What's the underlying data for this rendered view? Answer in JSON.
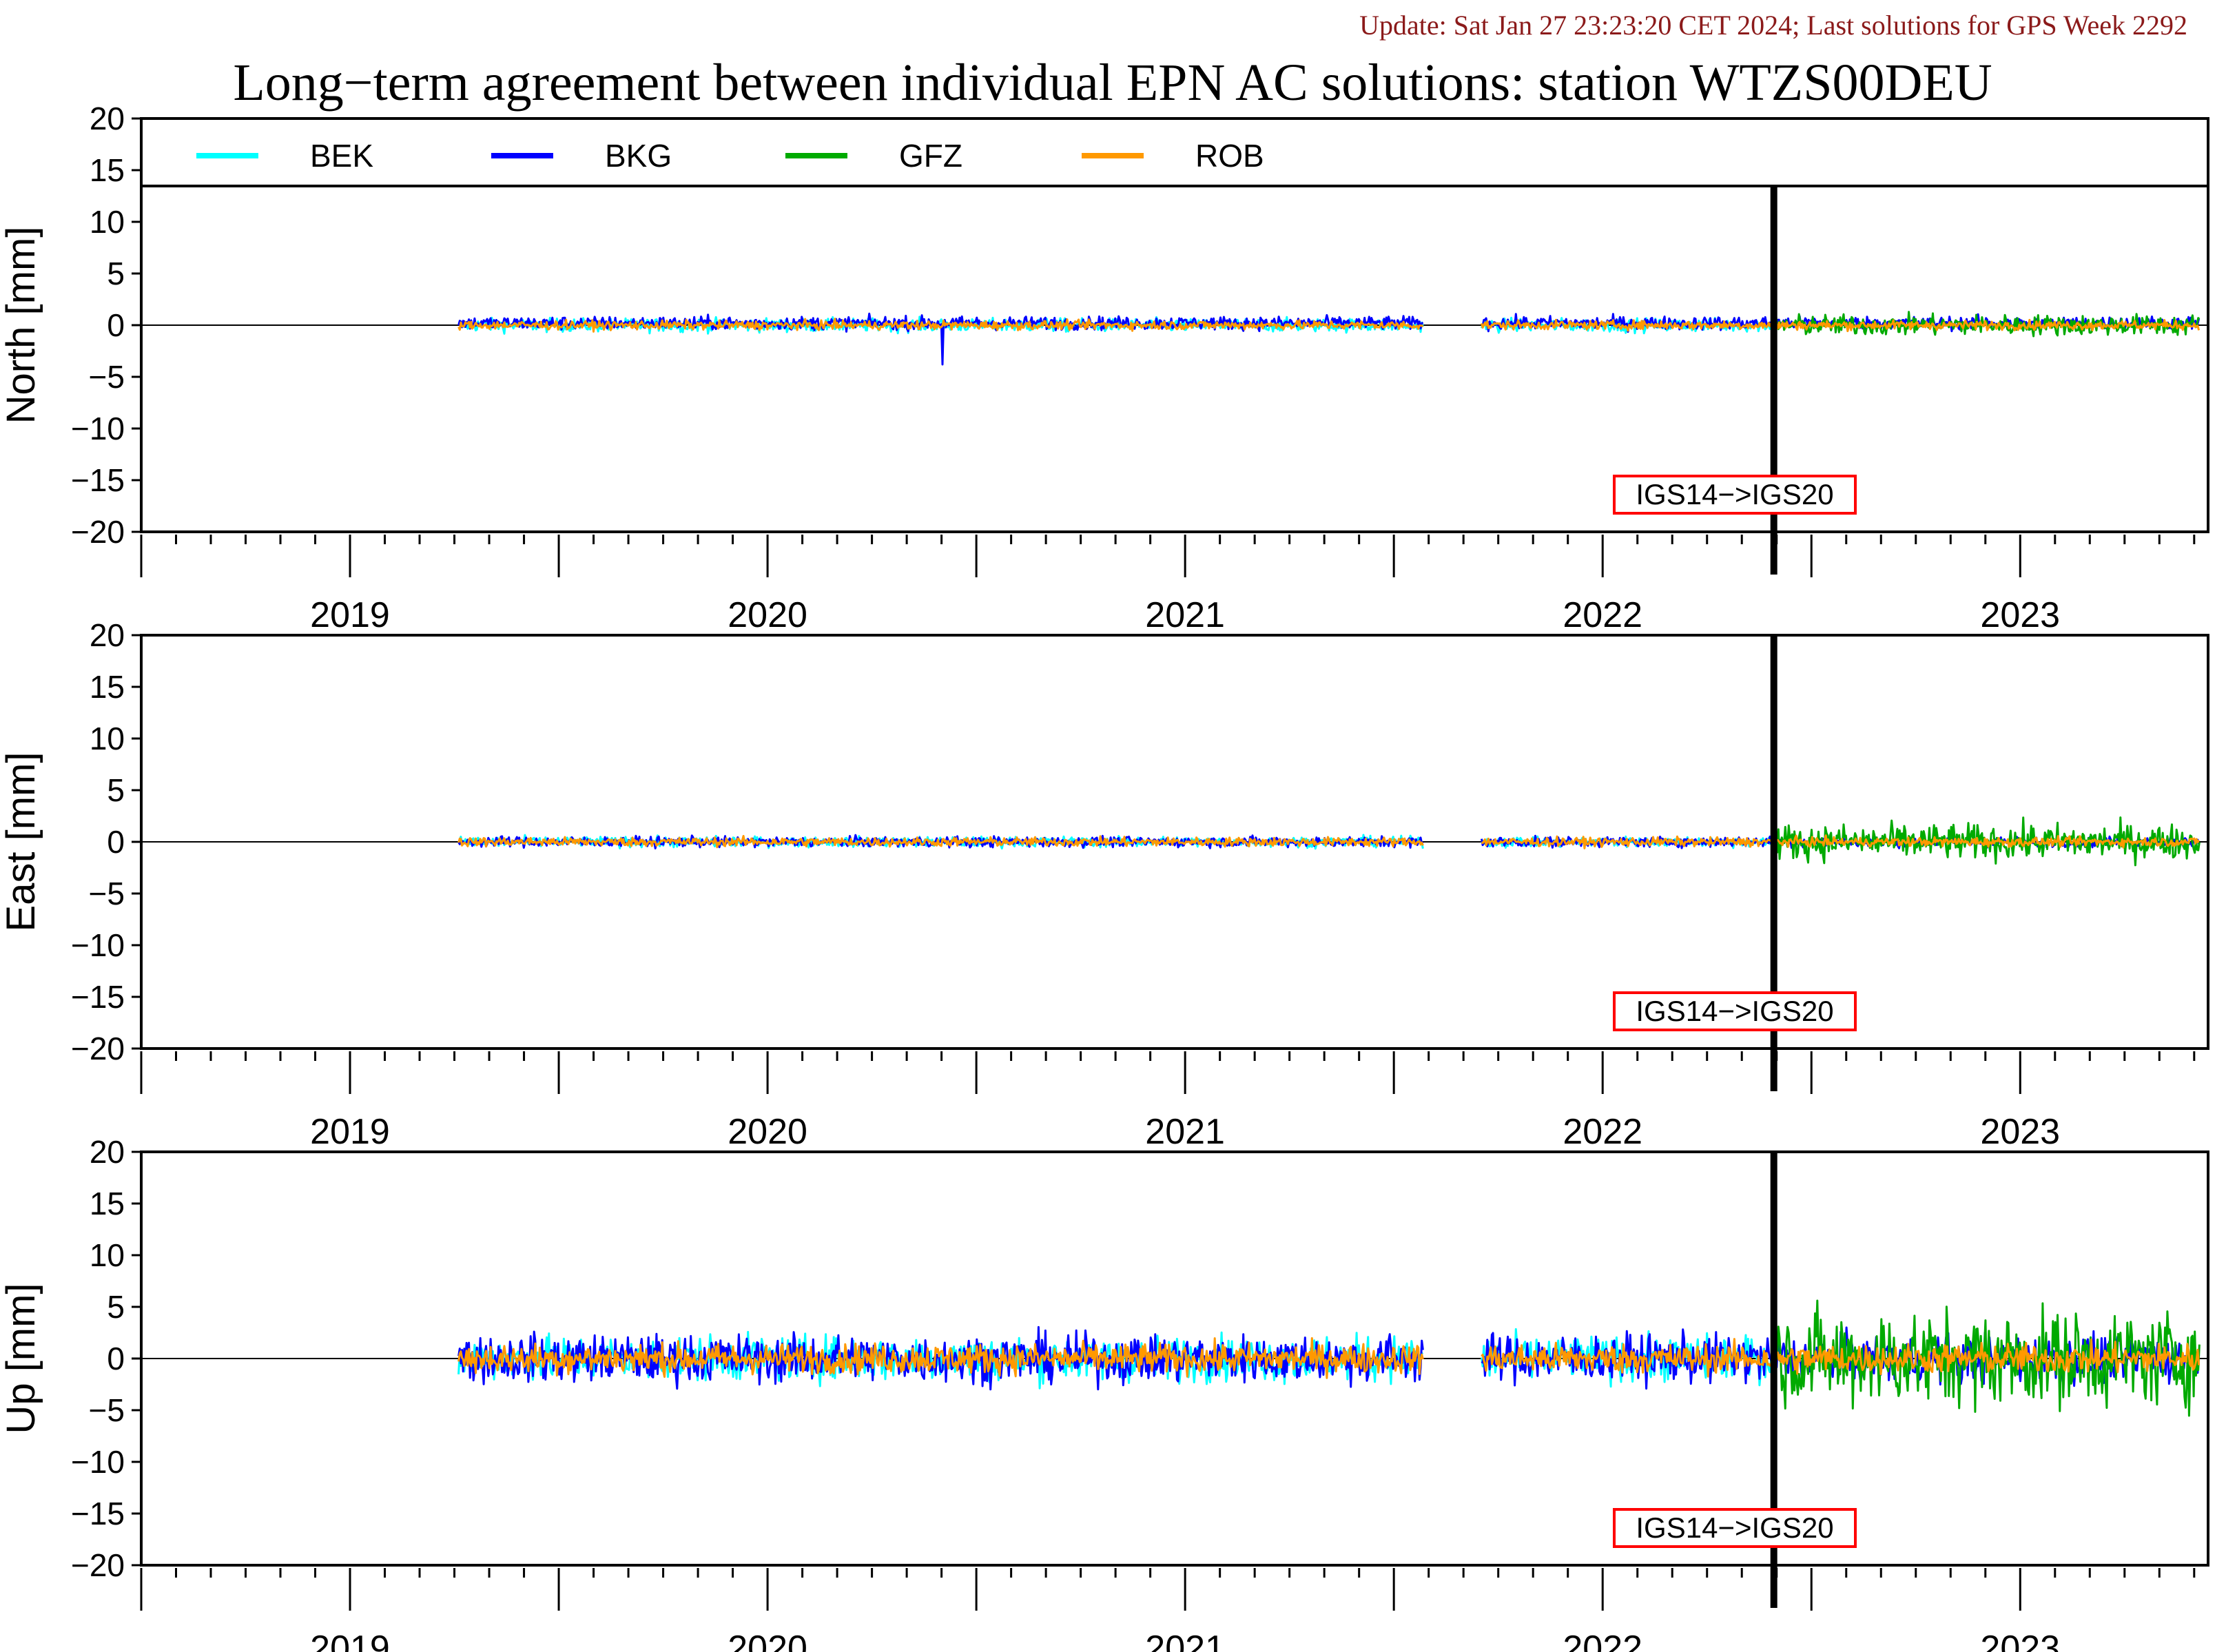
{
  "update_text": "Update: Sat Jan 27 23:23:20 CET 2024; Last solutions for GPS Week 2292",
  "chart_data": {
    "type": "line",
    "title": "Long−term agreement between individual EPN AC solutions: station WTZS00DEU",
    "legend": [
      {
        "name": "BEK",
        "color": "#00ffff"
      },
      {
        "name": "BKG",
        "color": "#0000ff"
      },
      {
        "name": "GFZ",
        "color": "#00aa00"
      },
      {
        "name": "ROB",
        "color": "#ff9900"
      }
    ],
    "legend_placement": "top",
    "x_range": [
      2018.5,
      2023.45
    ],
    "year_labels": [
      "2019",
      "2020",
      "2021",
      "2022",
      "2023"
    ],
    "reference_frame_change": {
      "x": 2022.41,
      "label": "IGS14−>IGS20"
    },
    "panels": [
      {
        "ylabel": "North [mm]",
        "ylim": [
          -20,
          20
        ],
        "yticks": [
          "20",
          "15",
          "10",
          "5",
          "0",
          "−5",
          "−10",
          "−15",
          "−20"
        ],
        "has_legend": true,
        "series_noise": {
          "BEK": 0.45,
          "BKG": 0.45,
          "GFZ": 0.7,
          "ROB": 0.3
        },
        "spikes": [
          {
            "series": "BKG",
            "x": 2020.42,
            "y": -3.8
          }
        ]
      },
      {
        "ylabel": "East [mm]",
        "ylim": [
          -20,
          20
        ],
        "yticks": [
          "20",
          "15",
          "10",
          "5",
          "0",
          "−5",
          "−10",
          "−15",
          "−20"
        ],
        "has_legend": false,
        "series_noise": {
          "BEK": 0.35,
          "BKG": 0.35,
          "GFZ": 1.2,
          "ROB": 0.3
        },
        "spikes": []
      },
      {
        "ylabel": "Up [mm]",
        "ylim": [
          -20,
          20
        ],
        "yticks": [
          "20",
          "15",
          "10",
          "5",
          "0",
          "−5",
          "−10",
          "−15",
          "−20"
        ],
        "has_legend": false,
        "series_noise": {
          "BEK": 1.5,
          "BKG": 1.6,
          "GFZ": 3.2,
          "ROB": 1.0
        },
        "spikes": []
      }
    ],
    "segments": [
      {
        "start": 2019.26,
        "end": 2021.57
      },
      {
        "start": 2021.71,
        "end": 2023.43
      }
    ],
    "gfz_start": 2022.41
  }
}
